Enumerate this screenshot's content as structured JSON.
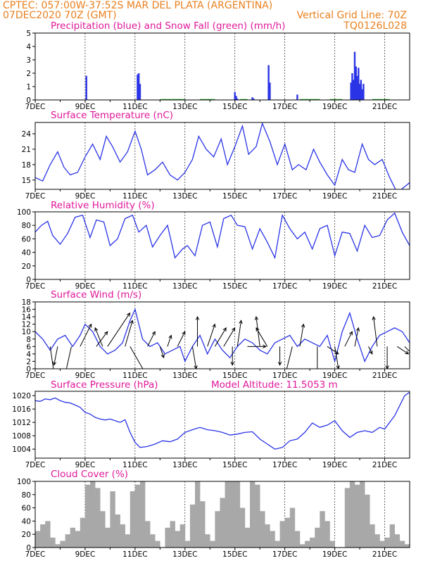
{
  "header": {
    "line1": "CPTEC:  057:00W-37:52S  MAR DEL PLATA (ARGENTINA)",
    "line2_left": "07DEC2020 70Z (GMT)",
    "line2_right": "Vertical Grid Line: 70Z",
    "code": "TQ0126L028"
  },
  "colors": {
    "header": "#e8801f",
    "title": "#e0189a",
    "series": "#2a34e6",
    "snow": "#22b022",
    "cloud": "#a8a8a8"
  },
  "x_ticks": [
    "7DEC",
    "9DEC",
    "11DEC",
    "13DEC",
    "15DEC",
    "17DEC",
    "19DEC",
    "21DEC"
  ],
  "chart_data": [
    {
      "id": "precip",
      "type": "bar",
      "title": "Precipitation (blue) and Snow Fall (green) (mm/h)",
      "xlim": [
        0,
        15
      ],
      "ylim": [
        0,
        5
      ],
      "yticks": [
        0,
        1,
        2,
        3,
        4,
        5
      ],
      "series": [
        {
          "name": "Precipitation",
          "x": [
            2.05,
            4.1,
            4.15,
            4.2,
            8.0,
            8.05,
            8.1,
            8.7,
            8.75,
            9.35,
            9.4,
            10.5,
            12.65,
            12.7,
            12.75,
            12.8,
            12.85,
            12.9,
            12.95,
            13.0,
            13.05,
            13.1,
            13.15
          ],
          "values": [
            1.8,
            1.9,
            2.0,
            1.2,
            0.6,
            0.3,
            0.1,
            0.2,
            0.1,
            2.6,
            1.3,
            0.4,
            1.3,
            2.0,
            1.5,
            3.6,
            2.5,
            1.8,
            2.4,
            1.2,
            1.5,
            0.8,
            1.2
          ]
        },
        {
          "name": "Snow Fall",
          "x": [],
          "values": []
        }
      ]
    },
    {
      "id": "temperature",
      "type": "line",
      "title": "Surface Temperature (nC)",
      "xlim": [
        0,
        15
      ],
      "ylim": [
        13.2,
        26.2
      ],
      "yticks": [
        15,
        18,
        21,
        24
      ],
      "x": [
        0,
        0.3,
        0.6,
        0.9,
        1.15,
        1.4,
        1.7,
        2.0,
        2.3,
        2.6,
        2.85,
        3.1,
        3.4,
        3.7,
        4.0,
        4.25,
        4.5,
        4.8,
        5.1,
        5.4,
        5.7,
        6.0,
        6.3,
        6.55,
        6.85,
        7.15,
        7.45,
        7.7,
        8.0,
        8.3,
        8.55,
        8.85,
        9.1,
        9.4,
        9.7,
        10.0,
        10.3,
        10.55,
        10.85,
        11.15,
        11.4,
        11.7,
        12.0,
        12.3,
        12.55,
        12.8,
        13.1,
        13.35,
        13.6,
        13.9,
        14.2,
        14.5,
        14.75,
        15.0
      ],
      "values": [
        15.5,
        14.8,
        18.0,
        20.5,
        17.5,
        16.0,
        16.5,
        19.5,
        22.0,
        19.0,
        23.5,
        21.5,
        18.5,
        20.5,
        24.5,
        21.0,
        16.0,
        17.0,
        18.5,
        16.0,
        15.0,
        16.5,
        19.0,
        23.5,
        21.0,
        19.5,
        23.0,
        18.0,
        21.5,
        25.5,
        20.0,
        21.5,
        26.0,
        22.5,
        18.0,
        22.0,
        17.0,
        18.0,
        17.0,
        21.0,
        18.5,
        16.0,
        14.0,
        19.0,
        17.0,
        16.5,
        22.0,
        19.0,
        18.0,
        19.0,
        15.5,
        12.5,
        13.5,
        14.5
      ]
    },
    {
      "id": "humidity",
      "type": "line",
      "title": "Relative Humidity (%)",
      "xlim": [
        0,
        15
      ],
      "ylim": [
        0,
        100
      ],
      "yticks": [
        0,
        20,
        40,
        60,
        80,
        100
      ],
      "x": [
        0,
        0.25,
        0.5,
        0.7,
        1.0,
        1.3,
        1.6,
        1.9,
        2.2,
        2.45,
        2.75,
        3.0,
        3.3,
        3.6,
        3.9,
        4.15,
        4.45,
        4.7,
        5.0,
        5.3,
        5.6,
        5.9,
        6.1,
        6.4,
        6.7,
        7.0,
        7.3,
        7.55,
        7.85,
        8.1,
        8.4,
        8.7,
        9.0,
        9.3,
        9.6,
        9.9,
        10.2,
        10.5,
        10.8,
        11.1,
        11.4,
        11.7,
        12.0,
        12.3,
        12.6,
        12.9,
        13.2,
        13.5,
        13.8,
        14.1,
        14.4,
        14.7,
        15.0
      ],
      "values": [
        70,
        80,
        86,
        65,
        52,
        68,
        92,
        95,
        62,
        88,
        85,
        50,
        60,
        90,
        95,
        70,
        80,
        48,
        65,
        80,
        32,
        45,
        50,
        35,
        80,
        85,
        48,
        90,
        95,
        80,
        78,
        45,
        75,
        55,
        32,
        95,
        75,
        60,
        70,
        45,
        75,
        80,
        35,
        70,
        68,
        42,
        80,
        62,
        65,
        88,
        98,
        70,
        50
      ]
    },
    {
      "id": "wind",
      "type": "line",
      "title": "Surface Wind (m/s)",
      "xlim": [
        0,
        15
      ],
      "ylim": [
        0,
        18
      ],
      "yticks": [
        0,
        2,
        4,
        6,
        8,
        10,
        12,
        14,
        16,
        18
      ],
      "x": [
        0,
        0.3,
        0.6,
        0.9,
        1.2,
        1.5,
        1.8,
        2.0,
        2.3,
        2.6,
        2.9,
        3.2,
        3.5,
        3.8,
        4.0,
        4.3,
        4.6,
        4.9,
        5.2,
        5.5,
        5.8,
        6.0,
        6.3,
        6.6,
        6.9,
        7.2,
        7.5,
        7.8,
        8.1,
        8.4,
        8.7,
        9.0,
        9.3,
        9.6,
        9.9,
        10.2,
        10.5,
        10.8,
        11.1,
        11.4,
        11.7,
        12.0,
        12.3,
        12.6,
        12.9,
        13.2,
        13.5,
        13.8,
        14.1,
        14.4,
        14.7,
        15.0
      ],
      "values": [
        10,
        8,
        5,
        8,
        9,
        6,
        9,
        12,
        10,
        6,
        4,
        5,
        7,
        13,
        16,
        8,
        6,
        7,
        4,
        5,
        6,
        2,
        6,
        9,
        4,
        8,
        5,
        3,
        6,
        8,
        7,
        5,
        4,
        7,
        8,
        9,
        6,
        8,
        7,
        6,
        9,
        2,
        10,
        15,
        8,
        2,
        6,
        9,
        10,
        11,
        10,
        7
      ],
      "vectors": [
        {
          "x": 0.6,
          "u": 1,
          "v": -7
        },
        {
          "x": 0.9,
          "u": -1,
          "v": -5
        },
        {
          "x": 1.45,
          "u": -2,
          "v": -9
        },
        {
          "x": 1.8,
          "u": 3,
          "v": 6
        },
        {
          "x": 2.45,
          "u": 3,
          "v": 4
        },
        {
          "x": 2.7,
          "u": -2,
          "v": 5
        },
        {
          "x": 2.9,
          "u": 6,
          "v": 9
        },
        {
          "x": 3.6,
          "u": 2,
          "v": 7
        },
        {
          "x": 3.8,
          "u": 4,
          "v": -7
        },
        {
          "x": 4.5,
          "u": 2,
          "v": 4
        },
        {
          "x": 5.0,
          "u": 1,
          "v": -3
        },
        {
          "x": 5.3,
          "u": 1,
          "v": 3
        },
        {
          "x": 5.7,
          "u": 2,
          "v": 4
        },
        {
          "x": 6.3,
          "u": 1,
          "v": -6
        },
        {
          "x": 6.5,
          "u": 0,
          "v": 8
        },
        {
          "x": 6.9,
          "u": 2,
          "v": 6
        },
        {
          "x": 7.2,
          "u": 3,
          "v": 5
        },
        {
          "x": 7.55,
          "u": 3,
          "v": 5
        },
        {
          "x": 7.9,
          "u": 0,
          "v": -5
        },
        {
          "x": 8.1,
          "u": 1,
          "v": 7
        },
        {
          "x": 8.5,
          "u": 5,
          "v": 0
        },
        {
          "x": 9.0,
          "u": -1,
          "v": 8
        },
        {
          "x": 9.3,
          "u": -3,
          "v": 5
        },
        {
          "x": 9.8,
          "u": 0,
          "v": -5
        },
        {
          "x": 10.3,
          "u": -2,
          "v": -8
        },
        {
          "x": 10.6,
          "u": 1,
          "v": 6
        },
        {
          "x": 11.3,
          "u": 0,
          "v": -10
        },
        {
          "x": 11.7,
          "u": 3,
          "v": -2
        },
        {
          "x": 12.0,
          "u": 1,
          "v": -6
        },
        {
          "x": 12.4,
          "u": 2,
          "v": 4
        },
        {
          "x": 12.8,
          "u": 1,
          "v": 5
        },
        {
          "x": 13.35,
          "u": 1,
          "v": -2
        },
        {
          "x": 13.7,
          "u": -1,
          "v": 8
        },
        {
          "x": 14.1,
          "u": 0,
          "v": -6
        },
        {
          "x": 14.5,
          "u": 3,
          "v": -2
        },
        {
          "x": 14.8,
          "u": 2,
          "v": -2
        }
      ]
    },
    {
      "id": "pressure",
      "type": "line",
      "title": "Surface Pressure (hPa)",
      "annotation": "Model Altitude: 11.5053 m",
      "xlim": [
        0,
        15
      ],
      "ylim": [
        1001.3,
        1021.3
      ],
      "yticks": [
        1004,
        1008,
        1012,
        1016,
        1020
      ],
      "x": [
        0,
        0.2,
        0.4,
        0.6,
        0.8,
        1.0,
        1.2,
        1.4,
        1.6,
        1.8,
        2.0,
        2.2,
        2.4,
        2.6,
        2.8,
        3.0,
        3.2,
        3.4,
        3.6,
        3.8,
        4.0,
        4.2,
        4.5,
        4.8,
        5.1,
        5.4,
        5.7,
        6.0,
        6.3,
        6.6,
        6.9,
        7.2,
        7.5,
        7.8,
        8.1,
        8.4,
        8.7,
        9.0,
        9.3,
        9.6,
        9.9,
        10.2,
        10.5,
        10.8,
        11.1,
        11.4,
        11.7,
        12.0,
        12.3,
        12.6,
        12.9,
        13.2,
        13.5,
        13.8,
        14.0,
        14.2,
        14.4,
        14.6,
        14.8,
        15.0
      ],
      "values": [
        1018.5,
        1018.3,
        1019,
        1018.8,
        1019.3,
        1018.5,
        1018,
        1017.8,
        1017.2,
        1016.5,
        1015,
        1014.5,
        1013.5,
        1013,
        1012.7,
        1013,
        1012.5,
        1012,
        1012.8,
        1009,
        1006,
        1004.5,
        1004.8,
        1005.5,
        1006.5,
        1006.2,
        1007,
        1009,
        1009.8,
        1010.5,
        1009.8,
        1009.5,
        1009,
        1008.2,
        1008.5,
        1009,
        1009.2,
        1007,
        1005.5,
        1004,
        1004.5,
        1006.5,
        1007,
        1009,
        1011.8,
        1010.5,
        1011.2,
        1012.5,
        1009.5,
        1007.5,
        1009,
        1009.5,
        1009,
        1010.5,
        1010,
        1012,
        1014,
        1017,
        1020,
        1021
      ]
    },
    {
      "id": "cloud",
      "type": "bar",
      "title": "Cloud Cover (%)",
      "xlim": [
        0,
        15
      ],
      "ylim": [
        0,
        100
      ],
      "yticks": [
        0,
        20,
        40,
        60,
        80,
        100
      ],
      "x": [
        0.1,
        0.3,
        0.5,
        0.7,
        0.9,
        1.1,
        1.3,
        1.5,
        1.7,
        1.9,
        2.1,
        2.3,
        2.5,
        2.7,
        2.9,
        3.1,
        3.3,
        3.5,
        3.7,
        3.9,
        4.1,
        4.3,
        4.5,
        4.7,
        4.9,
        5.1,
        5.3,
        5.5,
        5.7,
        5.9,
        6.1,
        6.3,
        6.5,
        6.7,
        6.9,
        7.1,
        7.3,
        7.5,
        7.7,
        7.9,
        8.1,
        8.3,
        8.5,
        8.7,
        8.9,
        9.1,
        9.3,
        9.5,
        9.7,
        9.9,
        10.1,
        10.3,
        10.5,
        10.7,
        10.9,
        11.1,
        11.3,
        11.5,
        11.7,
        11.9,
        12.1,
        12.3,
        12.5,
        12.7,
        12.9,
        13.1,
        13.3,
        13.5,
        13.7,
        13.9,
        14.1,
        14.3,
        14.5,
        14.7,
        14.9
      ],
      "values": [
        25,
        35,
        40,
        15,
        5,
        10,
        20,
        30,
        25,
        45,
        95,
        100,
        90,
        55,
        30,
        85,
        50,
        35,
        20,
        85,
        95,
        100,
        40,
        20,
        10,
        0,
        30,
        40,
        25,
        35,
        10,
        65,
        100,
        70,
        20,
        10,
        55,
        75,
        100,
        100,
        100,
        60,
        30,
        100,
        95,
        55,
        35,
        25,
        10,
        40,
        45,
        60,
        25,
        5,
        10,
        15,
        30,
        55,
        40,
        10,
        0,
        0,
        90,
        100,
        95,
        100,
        80,
        35,
        20,
        10,
        15,
        35,
        20,
        10,
        5
      ]
    }
  ]
}
